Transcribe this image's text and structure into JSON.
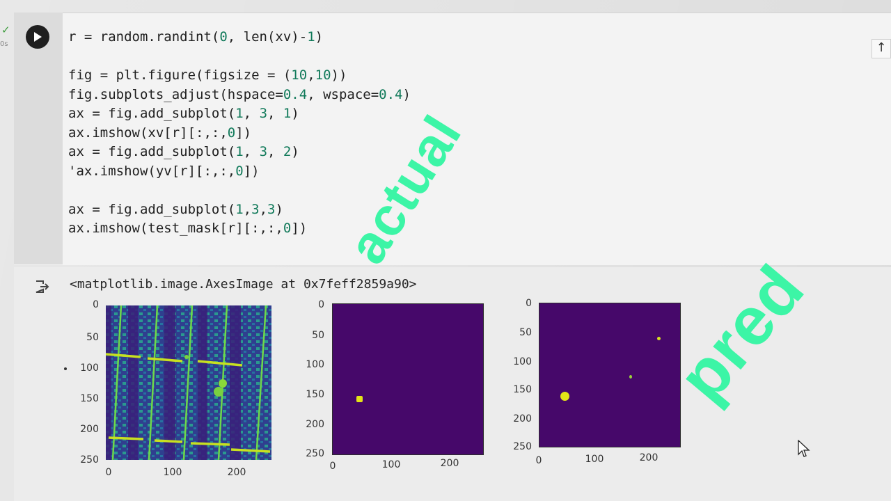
{
  "cell": {
    "status_icon": "checkmark-icon",
    "elapsed": "0s",
    "code_lines": [
      [
        {
          "t": "r = random.randint("
        },
        {
          "t": "0",
          "n": 1
        },
        {
          "t": ", len(xv)-"
        },
        {
          "t": "1",
          "n": 1
        },
        {
          "t": ")"
        }
      ],
      [],
      [
        {
          "t": "fig = plt.figure(figsize = ("
        },
        {
          "t": "10",
          "n": 1
        },
        {
          "t": ","
        },
        {
          "t": "10",
          "n": 1
        },
        {
          "t": "))"
        }
      ],
      [
        {
          "t": "fig.subplots_adjust(hspace="
        },
        {
          "t": "0.4",
          "n": 1
        },
        {
          "t": ", wspace="
        },
        {
          "t": "0.4",
          "n": 1
        },
        {
          "t": ")"
        }
      ],
      [
        {
          "t": "ax = fig.add_subplot("
        },
        {
          "t": "1",
          "n": 1
        },
        {
          "t": ", "
        },
        {
          "t": "3",
          "n": 1
        },
        {
          "t": ", "
        },
        {
          "t": "1",
          "n": 1
        },
        {
          "t": ")"
        }
      ],
      [
        {
          "t": "ax.imshow(xv[r][:,:,"
        },
        {
          "t": "0",
          "n": 1
        },
        {
          "t": "])"
        }
      ],
      [
        {
          "t": "ax = fig.add_subplot("
        },
        {
          "t": "1",
          "n": 1
        },
        {
          "t": ", "
        },
        {
          "t": "3",
          "n": 1
        },
        {
          "t": ", "
        },
        {
          "t": "2",
          "n": 1
        },
        {
          "t": ")"
        }
      ],
      [
        {
          "t": "'ax.imshow(yv[r][:,:,"
        },
        {
          "t": "0",
          "n": 1
        },
        {
          "t": "])"
        }
      ],
      [],
      [
        {
          "t": "ax = fig.add_subplot("
        },
        {
          "t": "1",
          "n": 1
        },
        {
          "t": ","
        },
        {
          "t": "3",
          "n": 1
        },
        {
          "t": ","
        },
        {
          "t": "3",
          "n": 1
        },
        {
          "t": ")"
        }
      ],
      [
        {
          "t": "ax.imshow(test_mask[r][:,:,"
        },
        {
          "t": "0",
          "n": 1
        },
        {
          "t": "])"
        }
      ]
    ]
  },
  "output": {
    "text": "<matplotlib.image.AxesImage at 0x7feff2859a90>",
    "plots": [
      {
        "name": "input-image",
        "y_ticks": [
          "0",
          "50",
          "100",
          "150",
          "200",
          "250"
        ],
        "x_ticks": [
          "0",
          "100",
          "200"
        ]
      },
      {
        "name": "actual-mask",
        "y_ticks": [
          "0",
          "50",
          "100",
          "150",
          "200",
          "250"
        ],
        "x_ticks": [
          "0",
          "100",
          "200"
        ]
      },
      {
        "name": "pred-mask",
        "y_ticks": [
          "0",
          "50",
          "100",
          "150",
          "200",
          "250"
        ],
        "x_ticks": [
          "0",
          "100",
          "200"
        ]
      }
    ]
  },
  "annotations": {
    "actual": "actual",
    "pred": "pred"
  },
  "colors": {
    "viridis_dark": "#46086a",
    "viridis_yellow": "#e3e418",
    "annotation_green": "#3cf5a6"
  }
}
